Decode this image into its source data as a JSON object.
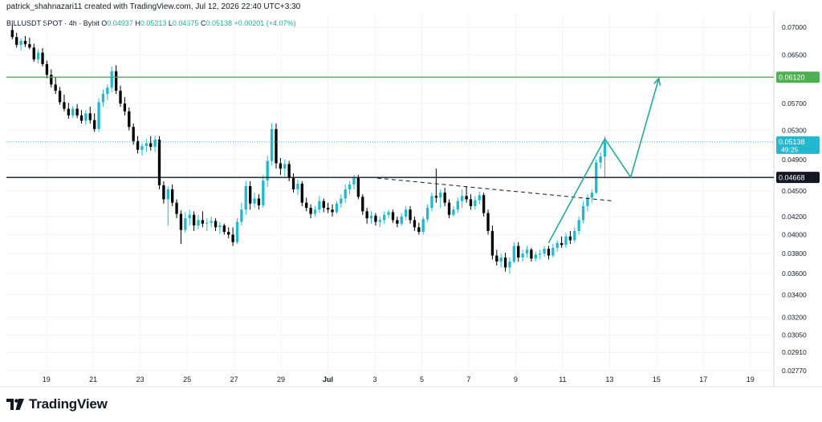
{
  "header": {
    "attribution": "patrick_shahnazari11 created with TradingView.com, Jul 12, 2026 22:40 UTC+3:30"
  },
  "symbol": {
    "name": "BILLUSDT SPOT · 4h · Bybit",
    "o_label": "O",
    "o_value": "0.04937",
    "h_label": "H",
    "h_value": "0.05213",
    "l_label": "L",
    "l_value": "0.04675",
    "c_label": "C",
    "c_value": "0.05138",
    "change": "+0.00201 (+4.07%)"
  },
  "footer": {
    "brand": "TradingView"
  },
  "colors": {
    "up": "#22b8cf",
    "down": "#000000",
    "green_line": "#4caf50",
    "black_line": "#131722",
    "arrow": "#26a69a",
    "grid": "#f0f3fa"
  },
  "chart_data": {
    "type": "candlestick",
    "y_scale": "log",
    "ylim": [
      0.0277,
      0.0725
    ],
    "y_ticks": [
      "0.07000",
      "0.06500",
      "0.06120",
      "0.05700",
      "0.05300",
      "0.05138",
      "0.04900",
      "0.04668",
      "0.04500",
      "0.04200",
      "0.04000",
      "0.03800",
      "0.03600",
      "0.03400",
      "0.03200",
      "0.03050",
      "0.02910",
      "0.02770"
    ],
    "x_ticks": [
      "19",
      "21",
      "23",
      "25",
      "27",
      "29",
      "Jul",
      "3",
      "5",
      "7",
      "9",
      "11",
      "13",
      "15",
      "17",
      "19"
    ],
    "x_tick_days": [
      19,
      21,
      23,
      25,
      27,
      29,
      31,
      33,
      35,
      37,
      39,
      41,
      43,
      45,
      47,
      49
    ],
    "x_range_days": [
      17.3,
      50
    ],
    "last_price": "0.05138",
    "countdown": "49:25",
    "levels": [
      {
        "name": "resistance",
        "value": 0.0612,
        "label": "0.06120",
        "color": "#4caf50"
      },
      {
        "name": "support",
        "value": 0.04668,
        "label": "0.04668",
        "color": "#131722"
      }
    ],
    "trendline": [
      [
        33.1,
        0.0466
      ],
      [
        43.2,
        0.0438
      ]
    ],
    "projection": [
      [
        40.4,
        0.0391
      ],
      [
        42.8,
        0.0518
      ],
      [
        43.9,
        0.0467
      ],
      [
        45.1,
        0.061
      ]
    ],
    "candles": [
      [
        0.0695,
        0.0705,
        0.0678,
        0.0682
      ],
      [
        0.0682,
        0.069,
        0.0663,
        0.0668
      ],
      [
        0.0668,
        0.068,
        0.0658,
        0.0675
      ],
      [
        0.0675,
        0.0684,
        0.0664,
        0.0669
      ],
      [
        0.0669,
        0.0681,
        0.066,
        0.0663
      ],
      [
        0.0663,
        0.067,
        0.0638,
        0.0642
      ],
      [
        0.0642,
        0.066,
        0.0635,
        0.0654
      ],
      [
        0.0654,
        0.0662,
        0.063,
        0.0634
      ],
      [
        0.0634,
        0.064,
        0.061,
        0.0616
      ],
      [
        0.0616,
        0.0625,
        0.0595,
        0.06
      ],
      [
        0.06,
        0.0612,
        0.0585,
        0.059
      ],
      [
        0.059,
        0.0596,
        0.0568,
        0.0572
      ],
      [
        0.0572,
        0.0584,
        0.0558,
        0.0562
      ],
      [
        0.0562,
        0.0571,
        0.0547,
        0.0552
      ],
      [
        0.0552,
        0.0566,
        0.0548,
        0.0562
      ],
      [
        0.0562,
        0.0569,
        0.0548,
        0.0552
      ],
      [
        0.0552,
        0.056,
        0.054,
        0.0544
      ],
      [
        0.0544,
        0.056,
        0.0538,
        0.0555
      ],
      [
        0.0555,
        0.0565,
        0.054,
        0.0545
      ],
      [
        0.0545,
        0.0555,
        0.0528,
        0.0532
      ],
      [
        0.0532,
        0.0578,
        0.0528,
        0.0572
      ],
      [
        0.0572,
        0.0592,
        0.0565,
        0.0585
      ],
      [
        0.0585,
        0.06,
        0.0575,
        0.0595
      ],
      [
        0.0595,
        0.063,
        0.0588,
        0.0622
      ],
      [
        0.0622,
        0.0632,
        0.0585,
        0.059
      ],
      [
        0.059,
        0.0598,
        0.0565,
        0.057
      ],
      [
        0.057,
        0.058,
        0.0552,
        0.0558
      ],
      [
        0.0558,
        0.0564,
        0.053,
        0.0535
      ],
      [
        0.0535,
        0.054,
        0.051,
        0.0515
      ],
      [
        0.0515,
        0.0522,
        0.0498,
        0.0503
      ],
      [
        0.0503,
        0.0512,
        0.0495,
        0.0508
      ],
      [
        0.0508,
        0.0518,
        0.05,
        0.0512
      ],
      [
        0.0512,
        0.0522,
        0.0502,
        0.0507
      ],
      [
        0.0507,
        0.0522,
        0.05,
        0.0517
      ],
      [
        0.0517,
        0.0522,
        0.0452,
        0.0457
      ],
      [
        0.0457,
        0.0462,
        0.0435,
        0.044
      ],
      [
        0.044,
        0.0456,
        0.041,
        0.0452
      ],
      [
        0.0452,
        0.0458,
        0.0432,
        0.0436
      ],
      [
        0.0436,
        0.044,
        0.0418,
        0.0423
      ],
      [
        0.0423,
        0.0427,
        0.039,
        0.0405
      ],
      [
        0.0405,
        0.0425,
        0.0402,
        0.0418
      ],
      [
        0.0418,
        0.0428,
        0.041,
        0.0422
      ],
      [
        0.0422,
        0.0426,
        0.0404,
        0.041
      ],
      [
        0.041,
        0.0422,
        0.0406,
        0.0416
      ],
      [
        0.0416,
        0.0426,
        0.0408,
        0.0412
      ],
      [
        0.0412,
        0.0418,
        0.0404,
        0.0413
      ],
      [
        0.0413,
        0.042,
        0.0408,
        0.0415
      ],
      [
        0.0415,
        0.0418,
        0.0404,
        0.0408
      ],
      [
        0.0408,
        0.0414,
        0.0401,
        0.041
      ],
      [
        0.041,
        0.0412,
        0.04,
        0.0403
      ],
      [
        0.0403,
        0.0408,
        0.0396,
        0.04
      ],
      [
        0.04,
        0.0408,
        0.0388,
        0.0392
      ],
      [
        0.0392,
        0.0418,
        0.039,
        0.0414
      ],
      [
        0.0414,
        0.0436,
        0.041,
        0.0428
      ],
      [
        0.0428,
        0.0462,
        0.0422,
        0.0456
      ],
      [
        0.0456,
        0.0462,
        0.0428,
        0.0435
      ],
      [
        0.0435,
        0.0448,
        0.043,
        0.0441
      ],
      [
        0.0441,
        0.0446,
        0.0428,
        0.0433
      ],
      [
        0.0433,
        0.047,
        0.043,
        0.0463
      ],
      [
        0.0463,
        0.0495,
        0.0455,
        0.0488
      ],
      [
        0.0488,
        0.054,
        0.0482,
        0.0532
      ],
      [
        0.0532,
        0.054,
        0.0478,
        0.0485
      ],
      [
        0.0485,
        0.0492,
        0.047,
        0.0478
      ],
      [
        0.0478,
        0.049,
        0.0468,
        0.0484
      ],
      [
        0.0484,
        0.0488,
        0.0462,
        0.0466
      ],
      [
        0.0466,
        0.0472,
        0.0448,
        0.0452
      ],
      [
        0.0452,
        0.0464,
        0.0445,
        0.0459
      ],
      [
        0.0459,
        0.0462,
        0.0432,
        0.0436
      ],
      [
        0.0436,
        0.0442,
        0.0426,
        0.043
      ],
      [
        0.043,
        0.0434,
        0.0418,
        0.0423
      ],
      [
        0.0423,
        0.0432,
        0.042,
        0.0428
      ],
      [
        0.0428,
        0.0444,
        0.0424,
        0.0438
      ],
      [
        0.0438,
        0.0441,
        0.0425,
        0.043
      ],
      [
        0.043,
        0.0436,
        0.0424,
        0.0428
      ],
      [
        0.0428,
        0.0434,
        0.042,
        0.0425
      ],
      [
        0.0425,
        0.0438,
        0.0423,
        0.0435
      ],
      [
        0.0435,
        0.0446,
        0.043,
        0.0441
      ],
      [
        0.0441,
        0.0458,
        0.0436,
        0.0452
      ],
      [
        0.0452,
        0.0462,
        0.0446,
        0.0458
      ],
      [
        0.0458,
        0.047,
        0.0452,
        0.0466
      ],
      [
        0.0466,
        0.047,
        0.044,
        0.0443
      ],
      [
        0.0443,
        0.0446,
        0.0422,
        0.0426
      ],
      [
        0.0426,
        0.043,
        0.0412,
        0.0418
      ],
      [
        0.0418,
        0.0426,
        0.0412,
        0.0421
      ],
      [
        0.0421,
        0.0424,
        0.041,
        0.0414
      ],
      [
        0.0414,
        0.042,
        0.0408,
        0.0416
      ],
      [
        0.0416,
        0.0426,
        0.0412,
        0.0422
      ],
      [
        0.0422,
        0.0428,
        0.0418,
        0.0425
      ],
      [
        0.0425,
        0.0428,
        0.0413,
        0.0416
      ],
      [
        0.0416,
        0.042,
        0.0408,
        0.0412
      ],
      [
        0.0412,
        0.0424,
        0.041,
        0.042
      ],
      [
        0.042,
        0.0432,
        0.0416,
        0.0428
      ],
      [
        0.0428,
        0.0432,
        0.0412,
        0.0416
      ],
      [
        0.0416,
        0.042,
        0.0404,
        0.0408
      ],
      [
        0.0408,
        0.0413,
        0.04,
        0.0403
      ],
      [
        0.0403,
        0.042,
        0.04,
        0.0417
      ],
      [
        0.0417,
        0.0434,
        0.0414,
        0.043
      ],
      [
        0.043,
        0.0448,
        0.0426,
        0.0444
      ],
      [
        0.0444,
        0.0478,
        0.0436,
        0.0442
      ],
      [
        0.0442,
        0.0452,
        0.043,
        0.0448
      ],
      [
        0.0448,
        0.0454,
        0.0432,
        0.0436
      ],
      [
        0.0436,
        0.044,
        0.0418,
        0.0422
      ],
      [
        0.0422,
        0.0432,
        0.042,
        0.0428
      ],
      [
        0.0428,
        0.0442,
        0.0424,
        0.0438
      ],
      [
        0.0438,
        0.0452,
        0.043,
        0.0444
      ],
      [
        0.0444,
        0.0456,
        0.0436,
        0.044
      ],
      [
        0.044,
        0.0446,
        0.0428,
        0.0432
      ],
      [
        0.0432,
        0.0444,
        0.0428,
        0.0439
      ],
      [
        0.0439,
        0.0449,
        0.0434,
        0.0445
      ],
      [
        0.0445,
        0.0448,
        0.042,
        0.0424
      ],
      [
        0.0424,
        0.0428,
        0.04,
        0.0404
      ],
      [
        0.0404,
        0.041,
        0.0374,
        0.0378
      ],
      [
        0.0378,
        0.0384,
        0.0368,
        0.0372
      ],
      [
        0.0372,
        0.038,
        0.0366,
        0.0376
      ],
      [
        0.0376,
        0.0381,
        0.0362,
        0.0366
      ],
      [
        0.0366,
        0.0376,
        0.036,
        0.0372
      ],
      [
        0.0372,
        0.0392,
        0.037,
        0.0388
      ],
      [
        0.0388,
        0.0392,
        0.0372,
        0.0376
      ],
      [
        0.0376,
        0.0384,
        0.0372,
        0.038
      ],
      [
        0.038,
        0.0388,
        0.0376,
        0.0384
      ],
      [
        0.0384,
        0.0386,
        0.0372,
        0.0375
      ],
      [
        0.0375,
        0.0382,
        0.0372,
        0.0379
      ],
      [
        0.0379,
        0.0384,
        0.0374,
        0.038
      ],
      [
        0.038,
        0.0388,
        0.0377,
        0.0385
      ],
      [
        0.0385,
        0.0388,
        0.0374,
        0.0378
      ],
      [
        0.0378,
        0.039,
        0.0376,
        0.0386
      ],
      [
        0.0386,
        0.0394,
        0.0382,
        0.0391
      ],
      [
        0.0391,
        0.0398,
        0.0386,
        0.0389
      ],
      [
        0.0389,
        0.0402,
        0.0386,
        0.0398
      ],
      [
        0.0398,
        0.0404,
        0.039,
        0.0394
      ],
      [
        0.0394,
        0.0408,
        0.0392,
        0.0404
      ],
      [
        0.0404,
        0.042,
        0.04,
        0.0416
      ],
      [
        0.0416,
        0.0438,
        0.0412,
        0.0432
      ],
      [
        0.0432,
        0.0446,
        0.0426,
        0.0442
      ],
      [
        0.0442,
        0.0452,
        0.0436,
        0.0448
      ],
      [
        0.0448,
        0.049,
        0.0446,
        0.0486
      ],
      [
        0.0486,
        0.05,
        0.0478,
        0.0494
      ],
      [
        0.04937,
        0.05213,
        0.04675,
        0.05138
      ]
    ]
  }
}
